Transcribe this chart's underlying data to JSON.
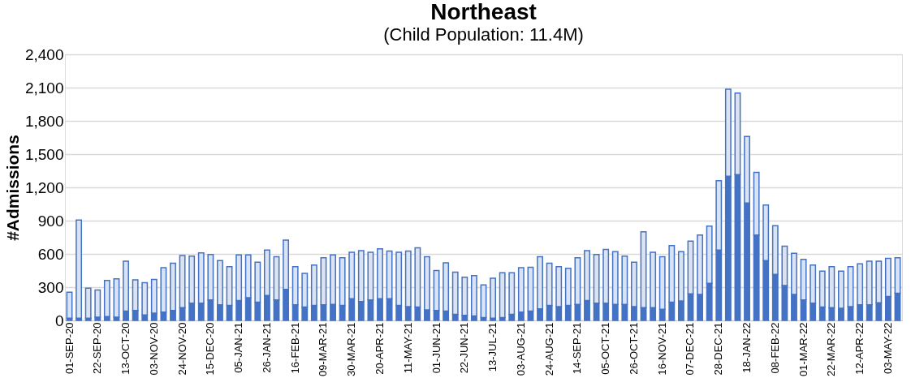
{
  "chart_data": {
    "type": "bar",
    "title": "Northeast",
    "subtitle": "(Child Population: 11.4M)",
    "ylabel": "#Admissions",
    "categories": [
      "01-SEP-20",
      null,
      null,
      "22-SEP-20",
      null,
      null,
      "13-OCT-20",
      null,
      null,
      "03-NOV-20",
      null,
      null,
      "24-NOV-20",
      null,
      null,
      "15-DEC-20",
      null,
      null,
      "05-JAN-21",
      null,
      null,
      "26-JAN-21",
      null,
      null,
      "16-FEB-21",
      null,
      null,
      "09-MAR-21",
      null,
      null,
      "30-MAR-21",
      null,
      null,
      "20-APR-21",
      null,
      null,
      "11-MAY-21",
      null,
      null,
      "01-JUN-21",
      null,
      null,
      "22-JUN-21",
      null,
      null,
      "13-JUL-21",
      null,
      null,
      "03-AUG-21",
      null,
      null,
      "24-AUG-21",
      null,
      null,
      "14-SEP-21",
      null,
      null,
      "05-OCT-21",
      null,
      null,
      "26-OCT-21",
      null,
      null,
      "16-NOV-21",
      null,
      null,
      "07-DEC-21",
      null,
      null,
      "28-DEC-21",
      null,
      null,
      "18-JAN-22",
      null,
      null,
      "08-FEB-22",
      null,
      null,
      "01-MAR-22",
      null,
      null,
      "22-MAR-22",
      null,
      null,
      "12-APR-22",
      null,
      null,
      "03-MAY-22",
      null
    ],
    "stacked": true,
    "series": [
      {
        "color": "#4472c4",
        "values": [
          20,
          20,
          20,
          30,
          35,
          30,
          85,
          90,
          50,
          65,
          75,
          90,
          115,
          155,
          155,
          185,
          140,
          135,
          180,
          205,
          165,
          225,
          185,
          280,
          140,
          120,
          135,
          140,
          145,
          135,
          195,
          170,
          185,
          195,
          195,
          135,
          125,
          120,
          95,
          90,
          85,
          55,
          45,
          40,
          25,
          20,
          25,
          55,
          75,
          85,
          105,
          135,
          125,
          135,
          145,
          180,
          155,
          155,
          145,
          145,
          125,
          115,
          115,
          100,
          165,
          175,
          240,
          235,
          335,
          635,
          1300,
          1315,
          1060,
          770,
          540,
          415,
          315,
          235,
          185,
          155,
          120,
          115,
          110,
          125,
          140,
          140,
          160,
          215,
          245
        ]
      },
      {
        "color": "#dae3f3",
        "values": [
          235,
          885,
          270,
          245,
          325,
          345,
          450,
          275,
          290,
          305,
          400,
          425,
          470,
          425,
          455,
          410,
          400,
          350,
          410,
          385,
          360,
          410,
          390,
          445,
          345,
          305,
          365,
          425,
          445,
          430,
          420,
          460,
          430,
          450,
          430,
          480,
          500,
          535,
          480,
          360,
          435,
          380,
          345,
          365,
          295,
          360,
          405,
          375,
          400,
          395,
          470,
          380,
          360,
          335,
          420,
          450,
          440,
          485,
          475,
          435,
          400,
          685,
          500,
          475,
          510,
          445,
          475,
          535,
          515,
          625,
          785,
          735,
          600,
          565,
          500,
          440,
          355,
          370,
          365,
          345,
          325,
          370,
          335,
          360,
          370,
          395,
          375,
          345,
          320
        ]
      }
    ],
    "ylim": [
      0,
      2400
    ],
    "yticks": [
      0,
      300,
      600,
      900,
      {
        "value": 1200,
        "label": "1,200"
      },
      {
        "value": 1500,
        "label": "1,500"
      },
      {
        "value": 1800,
        "label": "1,800"
      },
      {
        "value": 2100,
        "label": "2,100"
      },
      {
        "value": 2400,
        "label": "2,400"
      }
    ],
    "grid": "y",
    "legend": false
  }
}
